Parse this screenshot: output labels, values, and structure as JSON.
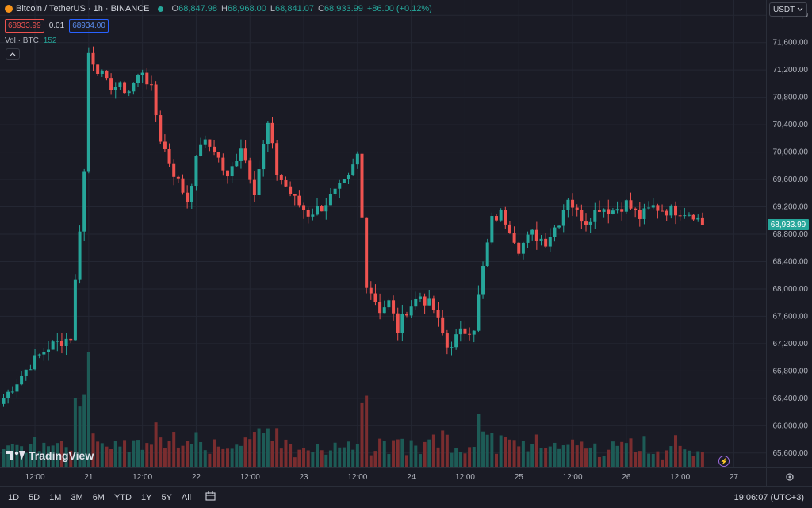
{
  "header": {
    "symbol": "Bitcoin / TetherUS · 1h · BINANCE",
    "o_label": "O",
    "o_value": "68,847.98",
    "h_label": "H",
    "h_value": "68,968.00",
    "l_label": "L",
    "l_value": "68,841.07",
    "c_label": "C",
    "c_value": "68,933.99",
    "change": "+86.00 (+0.12%)",
    "bid": "68933.99",
    "spread": "0.01",
    "ask": "68934.00",
    "volume_label": "Vol · BTC",
    "volume_value": "152"
  },
  "currency": "USDT",
  "last_price": "68,933.99",
  "logo_text": "TradingView",
  "periods": [
    "1D",
    "5D",
    "1M",
    "3M",
    "6M",
    "YTD",
    "1Y",
    "5Y",
    "All"
  ],
  "clock": "19:06:07 (UTC+3)",
  "colors": {
    "up": "#26a69a",
    "down": "#ef5350",
    "volume_up": "#1d5b56",
    "volume_down": "#7a2d2f",
    "background": "#1a1b25"
  },
  "icons": {
    "collapse": "chevron-up-icon",
    "calendar": "calendar-goto-icon",
    "settings": "gear-icon",
    "bolt": "bolt-icon",
    "dropdown": "chevron-down-icon",
    "status": "status-dot-icon"
  },
  "chart_data": {
    "type": "candlestick",
    "title": "Bitcoin / TetherUS · 1h · BINANCE",
    "ylim": [
      65400,
      72200
    ],
    "y_ticks": [
      65600,
      66000,
      66400,
      66800,
      67200,
      67600,
      68000,
      68400,
      68800,
      69200,
      69600,
      70000,
      70400,
      70800,
      71200,
      71600,
      72000
    ],
    "y_tick_labels": [
      "65,600.00",
      "66,000.00",
      "66,400.00",
      "66,800.00",
      "67,200.00",
      "67,600.00",
      "68,000.00",
      "68,400.00",
      "68,800.00",
      "69,200.00",
      "69,600.00",
      "70,000.00",
      "70,400.00",
      "70,800.00",
      "71,200.00",
      "71,600.00",
      "72,000.00"
    ],
    "x_ticks": [
      {
        "label": "12:00",
        "index": 7
      },
      {
        "label": "21",
        "index": 19
      },
      {
        "label": "12:00",
        "index": 31
      },
      {
        "label": "22",
        "index": 43
      },
      {
        "label": "12:00",
        "index": 55
      },
      {
        "label": "23",
        "index": 67
      },
      {
        "label": "12:00",
        "index": 79
      },
      {
        "label": "24",
        "index": 91
      },
      {
        "label": "12:00",
        "index": 103
      },
      {
        "label": "25",
        "index": 115
      },
      {
        "label": "12:00",
        "index": 127
      },
      {
        "label": "26",
        "index": 139
      },
      {
        "label": "12:00",
        "index": 151
      },
      {
        "label": "27",
        "index": 163
      }
    ],
    "last_price": 68933.99,
    "waypoints": [
      [
        0,
        66400
      ],
      [
        6,
        66900
      ],
      [
        10,
        67150
      ],
      [
        15,
        67300
      ],
      [
        18,
        69700
      ],
      [
        19,
        71450
      ],
      [
        23,
        71000
      ],
      [
        28,
        70900
      ],
      [
        31,
        71200
      ],
      [
        33,
        70900
      ],
      [
        35,
        70200
      ],
      [
        38,
        69700
      ],
      [
        41,
        69300
      ],
      [
        44,
        70150
      ],
      [
        47,
        70050
      ],
      [
        50,
        69600
      ],
      [
        53,
        70100
      ],
      [
        56,
        69450
      ],
      [
        59,
        70400
      ],
      [
        61,
        69700
      ],
      [
        65,
        69300
      ],
      [
        68,
        69100
      ],
      [
        71,
        69200
      ],
      [
        74,
        69400
      ],
      [
        77,
        69600
      ],
      [
        79,
        69950
      ],
      [
        81,
        68100
      ],
      [
        84,
        67700
      ],
      [
        86,
        67800
      ],
      [
        88,
        67400
      ],
      [
        90,
        67700
      ],
      [
        93,
        67900
      ],
      [
        96,
        67700
      ],
      [
        99,
        67150
      ],
      [
        102,
        67350
      ],
      [
        105,
        67450
      ],
      [
        107,
        68300
      ],
      [
        109,
        69000
      ],
      [
        111,
        69100
      ],
      [
        113,
        68900
      ],
      [
        115,
        68600
      ],
      [
        118,
        68800
      ],
      [
        121,
        68700
      ],
      [
        124,
        69000
      ],
      [
        126,
        69350
      ],
      [
        128,
        69100
      ],
      [
        130,
        69000
      ],
      [
        133,
        69200
      ],
      [
        136,
        69150
      ],
      [
        139,
        69250
      ],
      [
        142,
        69050
      ],
      [
        145,
        69200
      ],
      [
        148,
        69150
      ],
      [
        151,
        69150
      ],
      [
        154,
        69100
      ],
      [
        156,
        68930
      ]
    ]
  }
}
